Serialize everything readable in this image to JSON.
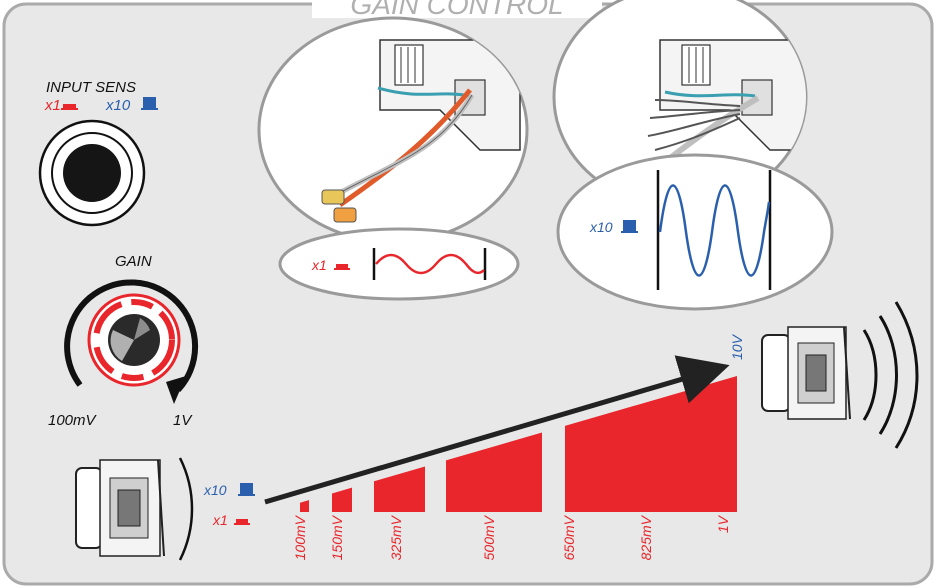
{
  "title": "GAIN CONTROL",
  "input_sens": {
    "label": "INPUT SENS",
    "x1_label": "x1",
    "x10_label": "x10"
  },
  "gain": {
    "label": "GAIN",
    "min_label": "100mV",
    "max_label": "1V"
  },
  "rca_inset": {
    "wave_label": "x1"
  },
  "speaker_wire_inset": {
    "wave_label": "x10"
  },
  "ramp": {
    "top_label": "10V",
    "row_labels": [
      "x10",
      "x1"
    ],
    "levels": [
      "100mV",
      "150mV",
      "325mV",
      "500mV",
      "650mV",
      "825mV",
      "1V"
    ]
  },
  "colors": {
    "red": "#e8262b",
    "blue": "#2a5fae",
    "frame": "#aaaaaa",
    "panel": "#e8e8e8"
  }
}
